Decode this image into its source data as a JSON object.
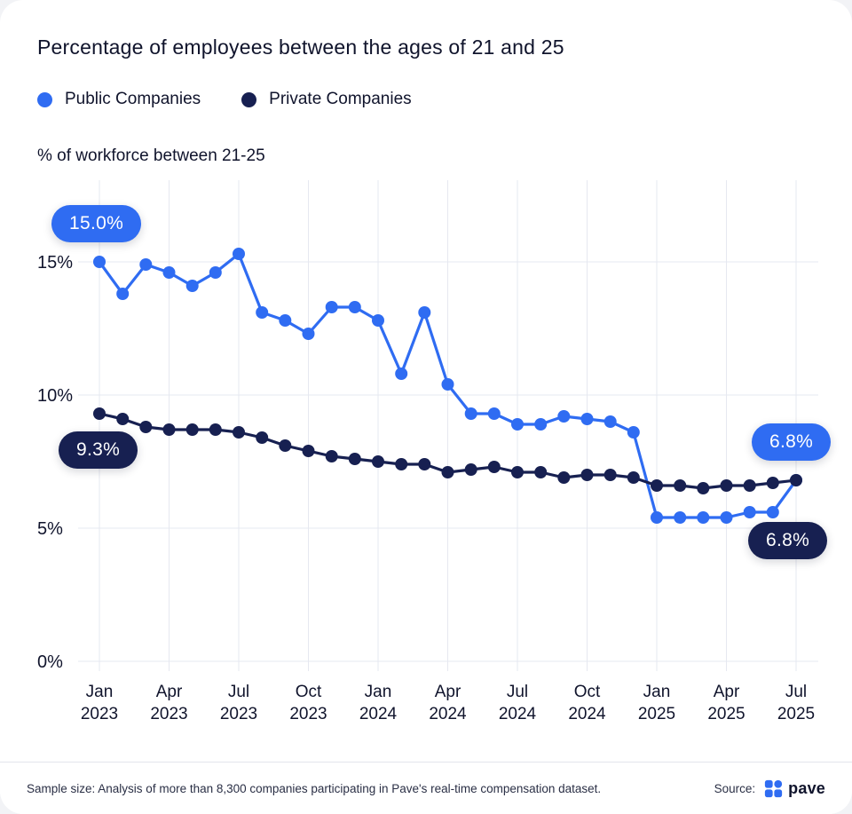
{
  "title": "Percentage of employees between the ages of 21 and 25",
  "legend": {
    "items": [
      {
        "label": "Public Companies",
        "color": "#2f6cf2"
      },
      {
        "label": "Private Companies",
        "color": "#172051"
      }
    ]
  },
  "axis_label": "% of workforce between 21-25",
  "annotations": {
    "public_start": "15.0%",
    "private_start": "9.3%",
    "public_end": "6.8%",
    "private_end": "6.8%"
  },
  "footer": {
    "sample_note": "Sample size: Analysis of more than 8,300 companies participating in Pave's real-time compensation dataset.",
    "source_label": "Source:",
    "source_name": "pave",
    "logo_color": "#2f6cf2"
  },
  "chart_data": {
    "type": "line",
    "title": "Percentage of employees between the ages of 21 and 25",
    "ylabel": "% of workforce between 21-25",
    "legend_position": "top-left",
    "grid": true,
    "grid_color": "#e6e8f0",
    "text_color": "#10142c",
    "ylim": [
      0,
      18
    ],
    "x": [
      "Jan 2023",
      "Feb 2023",
      "Mar 2023",
      "Apr 2023",
      "May 2023",
      "Jun 2023",
      "Jul 2023",
      "Aug 2023",
      "Sep 2023",
      "Oct 2023",
      "Nov 2023",
      "Dec 2023",
      "Jan 2024",
      "Feb 2024",
      "Mar 2024",
      "Apr 2024",
      "May 2024",
      "Jun 2024",
      "Jul 2024",
      "Aug 2024",
      "Sep 2024",
      "Oct 2024",
      "Nov 2024",
      "Dec 2024",
      "Jan 2025",
      "Feb 2025",
      "Mar 2025",
      "Apr 2025",
      "May 2025",
      "Jun 2025",
      "Jul 2025"
    ],
    "series": [
      {
        "name": "Public Companies",
        "color": "#2f6cf2",
        "values": [
          15.0,
          13.8,
          14.9,
          14.6,
          14.1,
          14.6,
          15.3,
          13.1,
          12.8,
          12.3,
          13.3,
          13.3,
          12.8,
          10.8,
          13.1,
          10.4,
          9.3,
          9.3,
          8.9,
          8.9,
          9.2,
          9.1,
          9.0,
          8.6,
          5.4,
          5.4,
          5.4,
          5.4,
          5.6,
          5.6,
          6.8
        ]
      },
      {
        "name": "Private Companies",
        "color": "#172051",
        "values": [
          9.3,
          9.1,
          8.8,
          8.7,
          8.7,
          8.7,
          8.6,
          8.4,
          8.1,
          7.9,
          7.7,
          7.6,
          7.5,
          7.4,
          7.4,
          7.1,
          7.2,
          7.3,
          7.1,
          7.1,
          6.9,
          7.0,
          7.0,
          6.9,
          6.6,
          6.6,
          6.5,
          6.6,
          6.6,
          6.7,
          6.8
        ]
      }
    ],
    "yticks": [
      {
        "v": 0,
        "label": "0%"
      },
      {
        "v": 5,
        "label": "5%"
      },
      {
        "v": 10,
        "label": "10%"
      },
      {
        "v": 15,
        "label": "15%"
      }
    ],
    "xticks": [
      {
        "i": 0,
        "line1": "Jan",
        "line2": "2023"
      },
      {
        "i": 3,
        "line1": "Apr",
        "line2": "2023"
      },
      {
        "i": 6,
        "line1": "Jul",
        "line2": "2023"
      },
      {
        "i": 9,
        "line1": "Oct",
        "line2": "2023"
      },
      {
        "i": 12,
        "line1": "Jan",
        "line2": "2024"
      },
      {
        "i": 15,
        "line1": "Apr",
        "line2": "2024"
      },
      {
        "i": 18,
        "line1": "Jul",
        "line2": "2024"
      },
      {
        "i": 21,
        "line1": "Oct",
        "line2": "2024"
      },
      {
        "i": 24,
        "line1": "Jan",
        "line2": "2025"
      },
      {
        "i": 27,
        "line1": "Apr",
        "line2": "2025"
      },
      {
        "i": 30,
        "line1": "Jul",
        "line2": "2025"
      }
    ]
  }
}
